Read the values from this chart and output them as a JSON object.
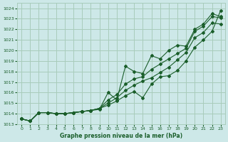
{
  "xlabel": "Graphe pression niveau de la mer (hPa)",
  "xlim": [
    -0.5,
    23.5
  ],
  "ylim": [
    1013,
    1024.5
  ],
  "yticks": [
    1013,
    1014,
    1015,
    1016,
    1017,
    1018,
    1019,
    1020,
    1021,
    1022,
    1023,
    1024
  ],
  "xticks": [
    0,
    1,
    2,
    3,
    4,
    5,
    6,
    7,
    8,
    9,
    10,
    11,
    12,
    13,
    14,
    15,
    16,
    17,
    18,
    19,
    20,
    21,
    22,
    23
  ],
  "background_color": "#cde8e8",
  "grid_color": "#a8ccbb",
  "line_color": "#1a5e2a",
  "series": [
    [
      1013.5,
      1013.3,
      1014.1,
      1014.1,
      1014.0,
      1014.0,
      1014.1,
      1014.2,
      1014.3,
      1014.4,
      1016.0,
      1015.3,
      1018.5,
      1018.0,
      1017.8,
      1019.5,
      1019.2,
      1020.0,
      1020.5,
      1020.4,
      1022.0,
      1022.5,
      1023.5,
      1023.2
    ],
    [
      1013.5,
      1013.3,
      1014.1,
      1014.1,
      1014.0,
      1014.0,
      1014.1,
      1014.2,
      1014.3,
      1014.5,
      1015.3,
      1015.8,
      1016.8,
      1017.3,
      1017.5,
      1018.2,
      1018.7,
      1019.2,
      1019.7,
      1020.2,
      1021.8,
      1022.3,
      1023.2,
      1023.1
    ],
    [
      1013.5,
      1013.3,
      1014.1,
      1014.1,
      1014.0,
      1014.0,
      1014.1,
      1014.2,
      1014.3,
      1014.5,
      1015.0,
      1015.5,
      1016.2,
      1016.7,
      1017.1,
      1017.4,
      1017.9,
      1018.4,
      1019.1,
      1019.8,
      1021.2,
      1021.7,
      1022.6,
      1022.5
    ],
    [
      1013.5,
      1013.3,
      1014.1,
      1014.1,
      1014.0,
      1014.0,
      1014.1,
      1014.2,
      1014.3,
      1014.5,
      1014.8,
      1015.2,
      1015.7,
      1016.1,
      1015.5,
      1016.8,
      1017.5,
      1017.6,
      1018.1,
      1019.0,
      1020.3,
      1021.0,
      1021.8,
      1023.8
    ]
  ]
}
